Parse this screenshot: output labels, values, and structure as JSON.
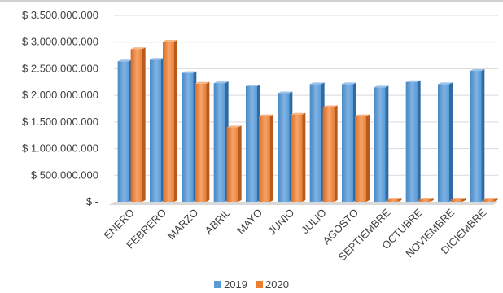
{
  "chart_data": {
    "type": "bar",
    "title": "",
    "xlabel": "",
    "ylabel": "",
    "ylim": [
      0,
      3500000000
    ],
    "yticks": [
      0,
      500000000,
      1000000000,
      1500000000,
      2000000000,
      2500000000,
      3000000000,
      3500000000
    ],
    "ytick_labels": [
      "$ -",
      "$ 500.000.000",
      "$ 1.000.000.000",
      "$ 1.500.000.000",
      "$ 2.000.000.000",
      "$ 2.500.000.000",
      "$ 3.000.000.000",
      "$ 3.500.000.000"
    ],
    "grid": true,
    "legend_position": "bottom",
    "categories": [
      "ENERO",
      "FEBRERO",
      "MARZO",
      "ABRIL",
      "MAYO",
      "JUNIO",
      "JULIO",
      "AGOSTO",
      "SEPTIEMBRE",
      "OCTUBRE",
      "NOVIEMBRE",
      "DICIEMBRE"
    ],
    "series": [
      {
        "name": "2019",
        "color": "#5b9bd5",
        "values": [
          2640000000,
          2670000000,
          2420000000,
          2230000000,
          2170000000,
          2040000000,
          2210000000,
          2210000000,
          2150000000,
          2250000000,
          2210000000,
          2460000000
        ]
      },
      {
        "name": "2020",
        "color": "#ed7d31",
        "values": [
          2870000000,
          3010000000,
          2220000000,
          1400000000,
          1610000000,
          1640000000,
          1780000000,
          1610000000,
          0,
          0,
          0,
          0
        ]
      }
    ]
  }
}
